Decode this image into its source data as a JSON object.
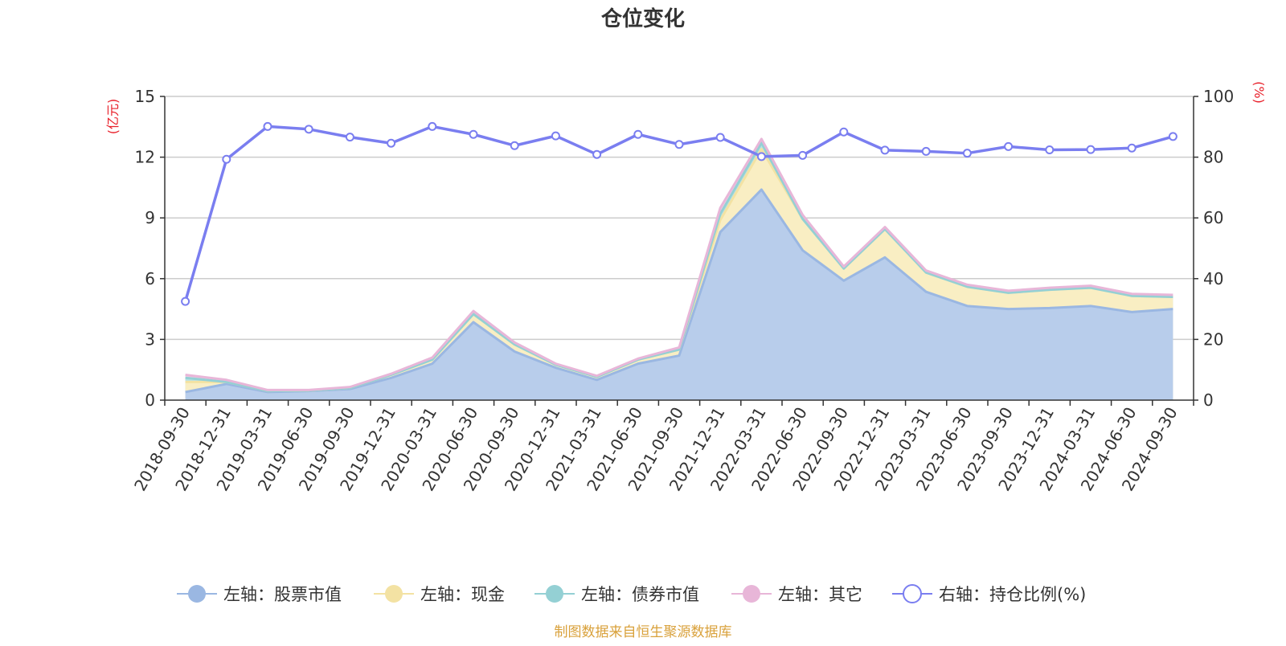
{
  "chart_data": {
    "type": "area",
    "title": "仓位变化",
    "left_axis_unit": "(亿元)",
    "right_axis_unit": "(%)",
    "left_ylim": [
      0,
      15
    ],
    "left_ticks": [
      "0",
      "3",
      "6",
      "9",
      "12",
      "15"
    ],
    "right_ylim": [
      0,
      100
    ],
    "right_ticks": [
      "0",
      "20",
      "40",
      "60",
      "80",
      "100"
    ],
    "categories": [
      "2018-09-30",
      "2018-12-31",
      "2019-03-31",
      "2019-06-30",
      "2019-09-30",
      "2019-12-31",
      "2020-03-31",
      "2020-06-30",
      "2020-09-30",
      "2020-12-31",
      "2021-03-31",
      "2021-06-30",
      "2021-09-30",
      "2021-12-31",
      "2022-03-31",
      "2022-06-30",
      "2022-09-30",
      "2022-12-31",
      "2023-03-31",
      "2023-06-30",
      "2023-09-30",
      "2023-12-31",
      "2024-03-31",
      "2024-06-30",
      "2024-09-30"
    ],
    "series": [
      {
        "name": "左轴：股票市值",
        "axis": "left",
        "kind": "stacked-area",
        "color": "#9ab7e2",
        "fill": "#b8cdeb",
        "values": [
          0.4,
          0.8,
          0.4,
          0.45,
          0.55,
          1.1,
          1.8,
          3.85,
          2.4,
          1.6,
          1.0,
          1.8,
          2.2,
          8.3,
          10.4,
          7.4,
          5.9,
          7.05,
          5.35,
          4.65,
          4.5,
          4.55,
          4.65,
          4.35,
          4.5
        ]
      },
      {
        "name": "左轴：现金",
        "axis": "left",
        "kind": "stacked-area",
        "color": "#f3e2a3",
        "fill": "#f9eec3",
        "values": [
          0.5,
          0.1,
          0.05,
          0.02,
          0.05,
          0.15,
          0.2,
          0.4,
          0.35,
          0.15,
          0.15,
          0.2,
          0.3,
          0.6,
          2.0,
          1.55,
          0.6,
          1.4,
          0.95,
          0.95,
          0.8,
          0.9,
          0.9,
          0.8,
          0.6
        ]
      },
      {
        "name": "左轴：债券市值",
        "axis": "left",
        "kind": "stacked-area",
        "color": "#94d0d4",
        "fill": "#b8e2e4",
        "values": [
          0.2,
          0.0,
          0.0,
          0.0,
          0.0,
          0.0,
          0.0,
          0.0,
          0.0,
          0.0,
          0.0,
          0.0,
          0.0,
          0.3,
          0.3,
          0.0,
          0.0,
          0.0,
          0.0,
          0.0,
          0.0,
          0.0,
          0.0,
          0.0,
          0.0
        ]
      },
      {
        "name": "左轴：其它",
        "axis": "left",
        "kind": "stacked-area",
        "color": "#e8b6d8",
        "fill": "#f0cfe6",
        "values": [
          0.15,
          0.1,
          0.05,
          0.03,
          0.05,
          0.05,
          0.1,
          0.15,
          0.1,
          0.05,
          0.05,
          0.05,
          0.1,
          0.3,
          0.2,
          0.2,
          0.1,
          0.1,
          0.1,
          0.1,
          0.1,
          0.1,
          0.1,
          0.1,
          0.1
        ]
      },
      {
        "name": "右轴：持仓比例(%)",
        "axis": "right",
        "kind": "line",
        "color": "#7a7ef0",
        "values": [
          32.5,
          79.3,
          90.1,
          89.2,
          86.6,
          84.6,
          90.1,
          87.5,
          83.8,
          87.0,
          80.9,
          87.5,
          84.2,
          86.5,
          80.2,
          80.6,
          88.3,
          82.3,
          81.9,
          81.3,
          83.5,
          82.4,
          82.5,
          83.0,
          86.8
        ]
      }
    ],
    "legend_position": "bottom",
    "grid": true,
    "source_note": "制图数据来自恒生聚源数据库",
    "colors": {
      "title": "#333333",
      "axis_unit": "#e8202a",
      "gridline": "#cccccc",
      "axis_line": "#333333",
      "source": "#d9a13b"
    }
  }
}
